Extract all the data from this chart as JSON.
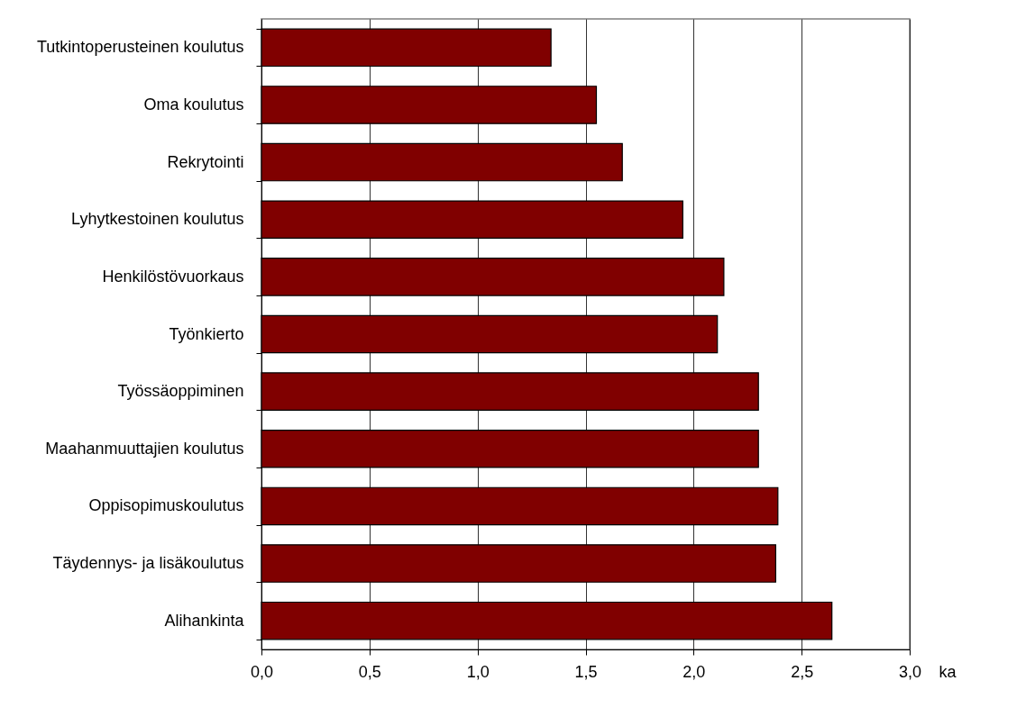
{
  "chart_data": {
    "type": "bar",
    "orientation": "horizontal",
    "xlabel": "ka",
    "categories": [
      "Tutkintoperusteinen koulutus",
      "Oma koulutus",
      "Rekrytointi",
      "Lyhytkestoinen koulutus",
      "Henkilöstövuorkaus",
      "Työnkierto",
      "Työssäoppiminen",
      "Maahanmuuttajien koulutus",
      "Oppisopimuskoulutus",
      "Täydennys- ja lisäkoulutus",
      "Alihankinta"
    ],
    "values": [
      1.34,
      1.55,
      1.67,
      1.95,
      2.14,
      2.11,
      2.3,
      2.3,
      2.39,
      2.38,
      2.64
    ],
    "color": "#800000",
    "xlim": [
      0,
      3
    ],
    "xticks": [
      {
        "value": 0,
        "label": "0,0"
      },
      {
        "value": 0.5,
        "label": "0,5"
      },
      {
        "value": 1,
        "label": "1,0"
      },
      {
        "value": 1.5,
        "label": "1,5"
      },
      {
        "value": 2,
        "label": "2,0"
      },
      {
        "value": 2.5,
        "label": "2,5"
      },
      {
        "value": 3,
        "label": "3,0"
      }
    ],
    "grid": "x"
  }
}
